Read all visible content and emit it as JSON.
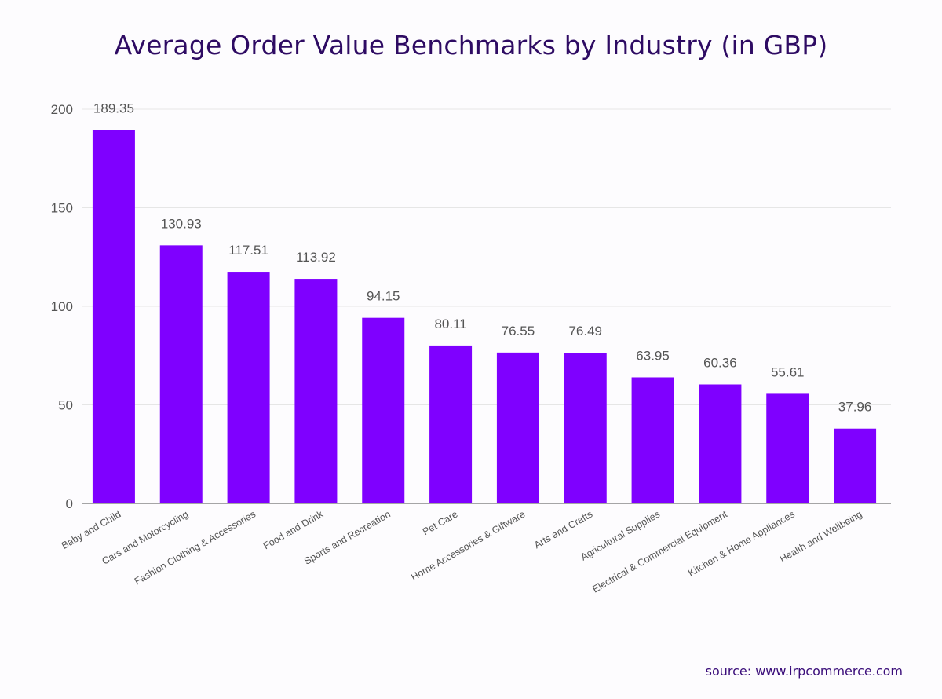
{
  "chart_data": {
    "type": "bar",
    "title": "Average Order Value Benchmarks by Industry (in GBP)",
    "categories": [
      "Baby and Child",
      "Cars and Motorcycling",
      "Fashion Clothing & Accessories",
      "Food and Drink",
      "Sports and Recreation",
      "Pet Care",
      "Home Accessories & Giftware",
      "Arts and Crafts",
      "Agricultural Supplies",
      "Electrical & Commercial Equipment",
      "Kitchen & Home Appliances",
      "Health and Wellbeing"
    ],
    "values": [
      189.35,
      130.93,
      117.51,
      113.92,
      94.15,
      80.11,
      76.55,
      76.49,
      63.95,
      60.36,
      55.61,
      37.96
    ],
    "data_labels": [
      "189.35",
      "130.93",
      "117.51",
      "113.92",
      "94.15",
      "80.11",
      "76.55",
      "76.49",
      "63.95",
      "60.36",
      "55.61",
      "37.96"
    ],
    "xlabel": "",
    "ylabel": "",
    "ylim": [
      0,
      200
    ],
    "yticks": [
      0,
      50,
      100,
      150,
      200
    ],
    "grid": true,
    "bar_color": "#7f00ff",
    "title_color": "#2e0b63"
  },
  "source": "source: www.irpcommerce.com"
}
